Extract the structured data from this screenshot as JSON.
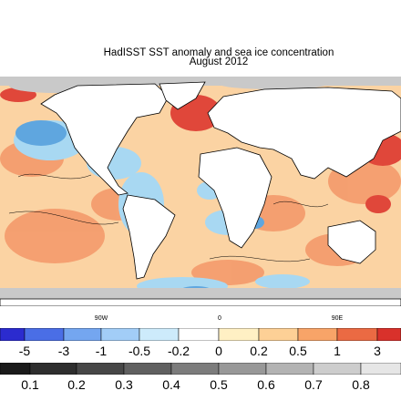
{
  "title": {
    "line1": "HadISST SST anomaly and sea ice concentration",
    "line2": "August 2012"
  },
  "longitude_labels": [
    "90W",
    "0",
    "90E"
  ],
  "anomaly_scale": {
    "ticks": [
      "-5",
      "-3",
      "-1",
      "-0.5",
      "-0.2",
      "0",
      "0.2",
      "0.5",
      "1",
      "3"
    ],
    "colors": [
      "#2b2bcf",
      "#4a6ee6",
      "#74a6f0",
      "#a2cdf7",
      "#cdebfb",
      "#ffffff",
      "#fff0c4",
      "#fdd096",
      "#f8a468",
      "#eb6a43",
      "#d9312b"
    ]
  },
  "ice_scale": {
    "ticks": [
      "0.1",
      "0.2",
      "0.3",
      "0.4",
      "0.5",
      "0.6",
      "0.7",
      "0.8"
    ],
    "colors": [
      "#1a1a1a",
      "#2e2e2e",
      "#474747",
      "#606060",
      "#7c7c7c",
      "#989898",
      "#b3b3b3",
      "#cdcdcd",
      "#e6e6e6"
    ]
  },
  "map_colors": {
    "ocean_base": "#fbd3a3",
    "warm": "#f49a6b",
    "hot": "#e0473a",
    "cool": "#a8d8f2",
    "cold": "#5fa6df",
    "land": "#ffffff",
    "ice": "#c9c9c9"
  }
}
